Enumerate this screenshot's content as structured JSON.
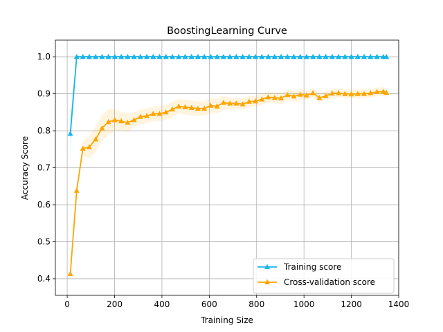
{
  "chart_data": {
    "type": "line",
    "title": "BoostingLearning Curve",
    "xlabel": "Training Size",
    "ylabel": "Accuracy Score",
    "xlim": [
      -50,
      1400
    ],
    "ylim": [
      0.355,
      1.045
    ],
    "xticks": [
      0,
      200,
      400,
      600,
      800,
      1000,
      1200,
      1400
    ],
    "yticks": [
      0.4,
      0.5,
      0.6,
      0.7,
      0.8,
      0.9,
      1.0
    ],
    "xtick_labels": [
      "0",
      "200",
      "400",
      "600",
      "800",
      "1000",
      "1200",
      "1400"
    ],
    "ytick_labels": [
      "0.4",
      "0.5",
      "0.6",
      "0.7",
      "0.8",
      "0.9",
      "1.0"
    ],
    "grid": true,
    "legend_position": "lower-right",
    "marker": "triangle-up",
    "x": [
      13,
      40,
      66,
      93,
      120,
      147,
      174,
      201,
      228,
      255,
      282,
      309,
      336,
      363,
      390,
      417,
      444,
      471,
      498,
      525,
      552,
      579,
      606,
      633,
      660,
      687,
      714,
      741,
      768,
      795,
      822,
      849,
      876,
      903,
      930,
      957,
      984,
      1011,
      1038,
      1065,
      1092,
      1119,
      1146,
      1173,
      1200,
      1227,
      1254,
      1281,
      1308,
      1335,
      1348
    ],
    "series": [
      {
        "name": "Training score",
        "color": "#1ab4e8",
        "values": [
          0.792,
          1.0,
          1.0,
          1.0,
          1.0,
          1.0,
          1.0,
          1.0,
          1.0,
          1.0,
          1.0,
          1.0,
          1.0,
          1.0,
          1.0,
          1.0,
          1.0,
          1.0,
          1.0,
          1.0,
          1.0,
          1.0,
          1.0,
          1.0,
          1.0,
          1.0,
          1.0,
          1.0,
          1.0,
          1.0,
          1.0,
          1.0,
          1.0,
          1.0,
          1.0,
          1.0,
          1.0,
          1.0,
          1.0,
          1.0,
          1.0,
          1.0,
          1.0,
          1.0,
          1.0,
          1.0,
          1.0,
          1.0,
          1.0,
          1.0,
          1.0
        ],
        "band": [
          0.065,
          0,
          0,
          0,
          0,
          0,
          0,
          0,
          0,
          0,
          0,
          0,
          0,
          0,
          0,
          0,
          0,
          0,
          0,
          0,
          0,
          0,
          0,
          0,
          0,
          0,
          0,
          0,
          0,
          0,
          0,
          0,
          0,
          0,
          0,
          0,
          0,
          0,
          0,
          0,
          0,
          0,
          0,
          0,
          0,
          0,
          0,
          0,
          0,
          0,
          0
        ]
      },
      {
        "name": "Cross-validation score",
        "color": "#ffa500",
        "values": [
          0.413,
          0.638,
          0.752,
          0.756,
          0.777,
          0.807,
          0.824,
          0.829,
          0.826,
          0.822,
          0.829,
          0.838,
          0.84,
          0.846,
          0.846,
          0.85,
          0.858,
          0.866,
          0.864,
          0.862,
          0.86,
          0.86,
          0.868,
          0.866,
          0.876,
          0.874,
          0.874,
          0.872,
          0.879,
          0.88,
          0.885,
          0.891,
          0.889,
          0.888,
          0.897,
          0.893,
          0.898,
          0.896,
          0.902,
          0.889,
          0.894,
          0.901,
          0.902,
          0.9,
          0.899,
          0.9,
          0.9,
          0.902,
          0.905,
          0.906,
          0.903
        ],
        "band": [
          0,
          0,
          0.02,
          0.03,
          0.035,
          0.035,
          0.035,
          0.03,
          0.025,
          0.025,
          0.02,
          0.02,
          0.02,
          0.02,
          0.02,
          0.02,
          0.02,
          0.02,
          0.02,
          0.02,
          0.02,
          0.02,
          0.02,
          0.02,
          0.02,
          0.015,
          0.015,
          0.015,
          0.015,
          0.015,
          0.015,
          0.015,
          0.015,
          0.015,
          0.015,
          0.015,
          0.015,
          0.012,
          0.012,
          0.012,
          0.012,
          0.012,
          0.012,
          0.012,
          0.012,
          0.012,
          0.012,
          0.012,
          0.012,
          0.012,
          0.012
        ]
      }
    ]
  }
}
